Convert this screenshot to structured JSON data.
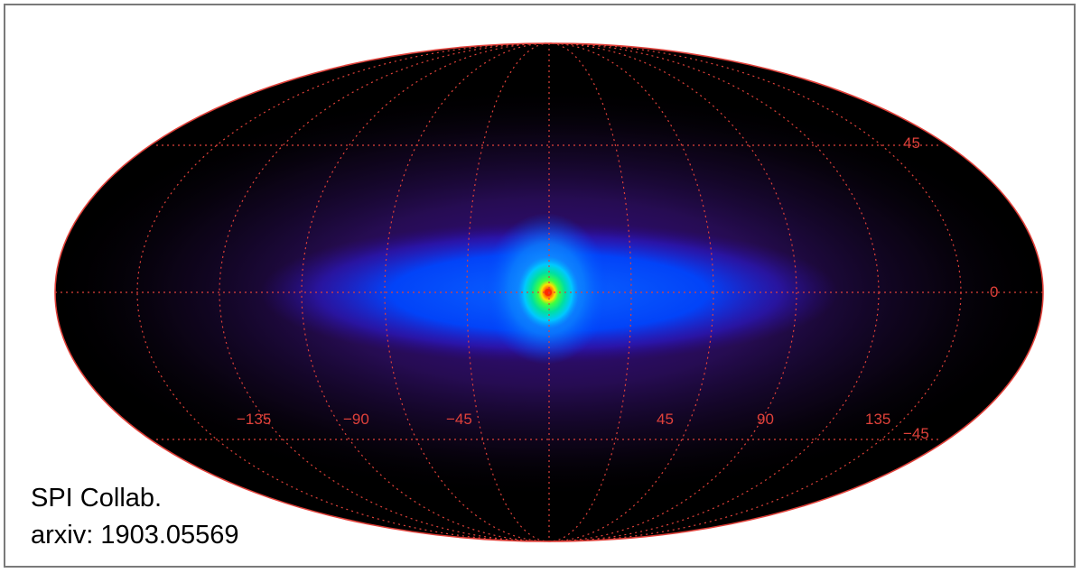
{
  "credit": {
    "line1": "SPI Collab.",
    "line2": "arxiv: 1903.05569"
  },
  "grid_labels": {
    "latitude": [
      "45",
      "0",
      "−45"
    ],
    "longitude": [
      "−135",
      "−90",
      "−45",
      "45",
      "90",
      "135"
    ]
  },
  "colors": {
    "grid": "#e0413a",
    "outline": "#e0413a",
    "background": "#000000",
    "disk": "#0046ff",
    "core": "#00e070",
    "center": "#ff2a00"
  }
}
